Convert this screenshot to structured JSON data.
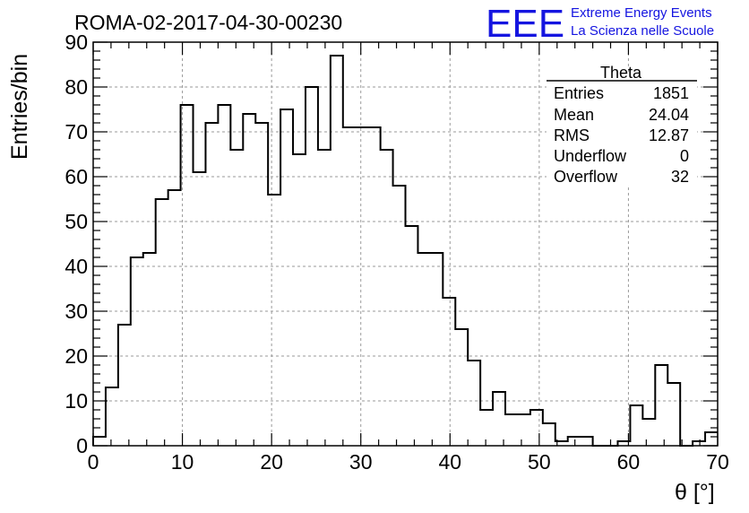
{
  "header": {
    "title": "ROMA-02-2017-04-30-00230",
    "logo_text": "EEE",
    "logo_line1": "Extreme Energy Events",
    "logo_line2": "La Scienza nelle Scuole",
    "logo_color": "#1515e0"
  },
  "stats": {
    "name": "Theta",
    "rows": [
      {
        "label": "Entries",
        "value": "1851"
      },
      {
        "label": "Mean",
        "value": "24.04"
      },
      {
        "label": "RMS",
        "value": "12.87"
      },
      {
        "label": "Underflow",
        "value": "0"
      },
      {
        "label": "Overflow",
        "value": "32"
      }
    ]
  },
  "chart_data": {
    "type": "bar",
    "title": "ROMA-02-2017-04-30-00230",
    "xlabel": "θ [°]",
    "ylabel": "Entries/bin",
    "xlim": [
      0,
      70
    ],
    "ylim": [
      0,
      90
    ],
    "x_ticks": [
      0,
      10,
      20,
      30,
      40,
      50,
      60,
      70
    ],
    "y_ticks": [
      0,
      10,
      20,
      30,
      40,
      50,
      60,
      70,
      80,
      90
    ],
    "grid": true,
    "legend": "top-right",
    "bin_width": 1.4,
    "bin_edges_start": 0,
    "values": [
      2,
      13,
      27,
      42,
      43,
      55,
      57,
      76,
      61,
      72,
      76,
      66,
      74,
      72,
      56,
      75,
      65,
      80,
      66,
      87,
      71,
      71,
      71,
      66,
      58,
      49,
      43,
      43,
      33,
      26,
      19,
      8,
      12,
      7,
      7,
      8,
      5,
      1,
      2,
      2,
      0,
      0,
      1,
      9,
      6,
      18,
      14,
      0,
      1,
      3
    ]
  }
}
